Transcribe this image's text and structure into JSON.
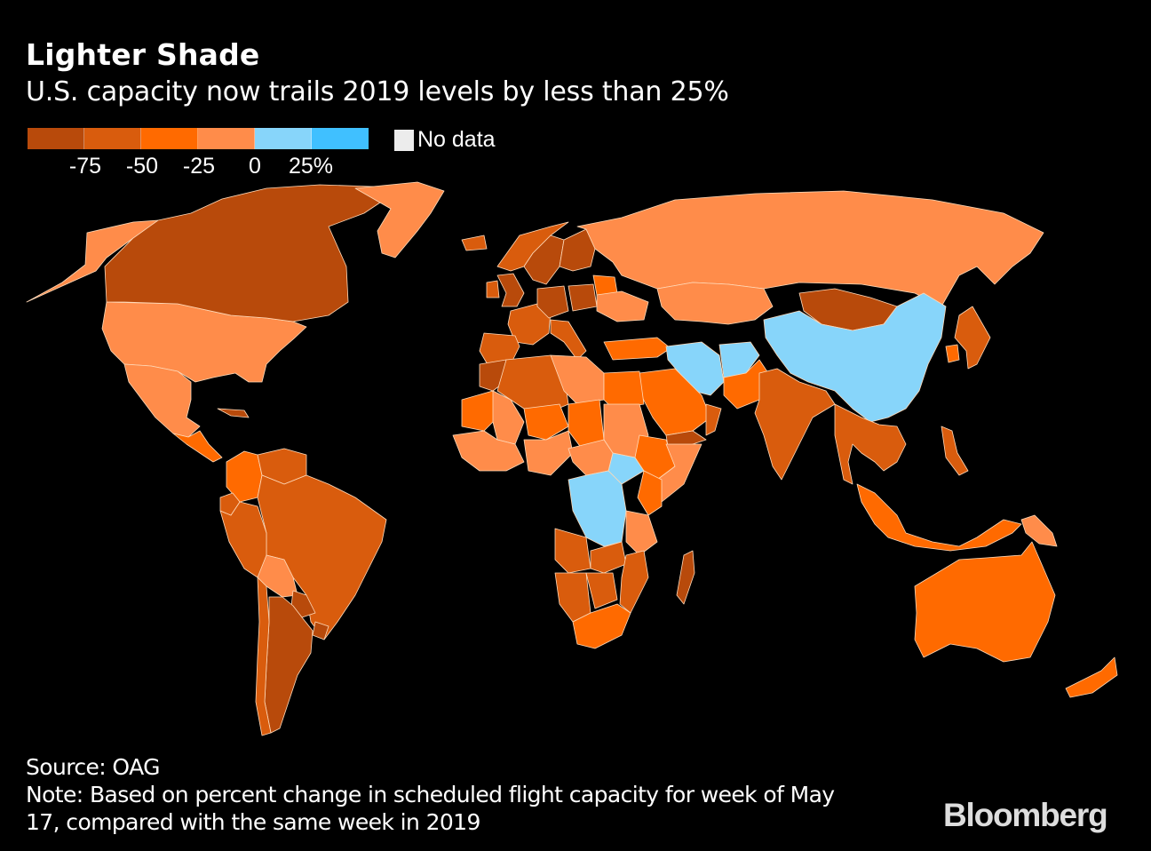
{
  "header": {
    "title": "Lighter Shade",
    "subtitle": "U.S. capacity now trails 2019 levels by less than 25%"
  },
  "legend": {
    "bins": [
      {
        "range": [
          -100,
          -75
        ],
        "color": "#b84a0b"
      },
      {
        "range": [
          -75,
          -50
        ],
        "color": "#d95c0d"
      },
      {
        "range": [
          -50,
          -25
        ],
        "color": "#ff6a00"
      },
      {
        "range": [
          -25,
          0
        ],
        "color": "#ff8c4a"
      },
      {
        "range": [
          0,
          25
        ],
        "color": "#87d5fa"
      },
      {
        "range": [
          25,
          50
        ],
        "color": "#40c0ff"
      }
    ],
    "tick_labels": [
      "-75",
      "-50",
      "-25",
      "0",
      "25%"
    ],
    "no_data_label": "No data",
    "no_data_color": "#ececec"
  },
  "chart_data": {
    "type": "choropleth",
    "title": "Lighter Shade",
    "subtitle": "U.S. capacity now trails 2019 levels by less than 25%",
    "metric": "Percent change in scheduled flight capacity, week of May 17 vs same week 2019",
    "legend_placement": "top-left",
    "bin_edges": [
      -100,
      -75,
      -50,
      -25,
      0,
      25,
      50
    ],
    "regions": [
      {
        "name": "United States",
        "bin": "-25 to 0"
      },
      {
        "name": "Alaska (U.S.)",
        "bin": "-25 to 0"
      },
      {
        "name": "Canada",
        "bin": "-100 to -75"
      },
      {
        "name": "Greenland",
        "bin": "-25 to 0"
      },
      {
        "name": "Mexico",
        "bin": "-25 to 0"
      },
      {
        "name": "Central America",
        "bin": "-50 to -25"
      },
      {
        "name": "Cuba",
        "bin": "-100 to -75"
      },
      {
        "name": "Colombia",
        "bin": "-50 to -25"
      },
      {
        "name": "Venezuela",
        "bin": "-75 to -50"
      },
      {
        "name": "Brazil",
        "bin": "-75 to -50"
      },
      {
        "name": "Peru",
        "bin": "-75 to -50"
      },
      {
        "name": "Ecuador",
        "bin": "-75 to -50"
      },
      {
        "name": "Bolivia",
        "bin": "-25 to 0"
      },
      {
        "name": "Paraguay",
        "bin": "-100 to -75"
      },
      {
        "name": "Argentina",
        "bin": "-100 to -75"
      },
      {
        "name": "Chile",
        "bin": "-75 to -50"
      },
      {
        "name": "Uruguay",
        "bin": "-100 to -75"
      },
      {
        "name": "Iceland",
        "bin": "-75 to -50"
      },
      {
        "name": "Norway",
        "bin": "-75 to -50"
      },
      {
        "name": "Sweden",
        "bin": "-100 to -75"
      },
      {
        "name": "Finland",
        "bin": "-100 to -75"
      },
      {
        "name": "United Kingdom",
        "bin": "-100 to -75"
      },
      {
        "name": "Ireland",
        "bin": "-75 to -50"
      },
      {
        "name": "France",
        "bin": "-75 to -50"
      },
      {
        "name": "Spain",
        "bin": "-75 to -50"
      },
      {
        "name": "Germany",
        "bin": "-100 to -75"
      },
      {
        "name": "Poland",
        "bin": "-100 to -75"
      },
      {
        "name": "Italy",
        "bin": "-75 to -50"
      },
      {
        "name": "Belarus",
        "bin": "-50 to -25"
      },
      {
        "name": "Ukraine",
        "bin": "-25 to 0"
      },
      {
        "name": "Turkey",
        "bin": "-50 to -25"
      },
      {
        "name": "Russia",
        "bin": "-25 to 0"
      },
      {
        "name": "Kazakhstan",
        "bin": "-25 to 0"
      },
      {
        "name": "Mongolia",
        "bin": "-100 to -75"
      },
      {
        "name": "China",
        "bin": "0 to 25"
      },
      {
        "name": "Iran",
        "bin": "0 to 25"
      },
      {
        "name": "Afghanistan",
        "bin": "0 to 25"
      },
      {
        "name": "Pakistan",
        "bin": "-50 to -25"
      },
      {
        "name": "India",
        "bin": "-75 to -50"
      },
      {
        "name": "Saudi Arabia",
        "bin": "-50 to -25"
      },
      {
        "name": "Yemen",
        "bin": "-100 to -75"
      },
      {
        "name": "Oman",
        "bin": "-75 to -50"
      },
      {
        "name": "Japan",
        "bin": "-75 to -50"
      },
      {
        "name": "South Korea",
        "bin": "-50 to -25"
      },
      {
        "name": "Southeast Asia mainland",
        "bin": "-75 to -50"
      },
      {
        "name": "Philippines",
        "bin": "-75 to -50"
      },
      {
        "name": "Indonesia",
        "bin": "-50 to -25"
      },
      {
        "name": "Papua New Guinea",
        "bin": "-25 to 0"
      },
      {
        "name": "Australia",
        "bin": "-50 to -25"
      },
      {
        "name": "New Zealand",
        "bin": "-50 to -25"
      },
      {
        "name": "Morocco",
        "bin": "-100 to -75"
      },
      {
        "name": "Algeria",
        "bin": "-75 to -50"
      },
      {
        "name": "Libya",
        "bin": "-25 to 0"
      },
      {
        "name": "Egypt",
        "bin": "-50 to -25"
      },
      {
        "name": "Mauritania",
        "bin": "-50 to -25"
      },
      {
        "name": "Mali",
        "bin": "-25 to 0"
      },
      {
        "name": "Niger",
        "bin": "-50 to -25"
      },
      {
        "name": "Chad",
        "bin": "-50 to -25"
      },
      {
        "name": "Sudan",
        "bin": "-25 to 0"
      },
      {
        "name": "South Sudan",
        "bin": "0 to 25"
      },
      {
        "name": "Ethiopia",
        "bin": "-50 to -25"
      },
      {
        "name": "Somalia",
        "bin": "-25 to 0"
      },
      {
        "name": "Nigeria",
        "bin": "-25 to 0"
      },
      {
        "name": "West Africa coast",
        "bin": "-25 to 0"
      },
      {
        "name": "Central African Republic",
        "bin": "-25 to 0"
      },
      {
        "name": "DR Congo",
        "bin": "0 to 25"
      },
      {
        "name": "Kenya",
        "bin": "-50 to -25"
      },
      {
        "name": "Tanzania",
        "bin": "-25 to 0"
      },
      {
        "name": "Angola",
        "bin": "-75 to -50"
      },
      {
        "name": "Zambia",
        "bin": "-75 to -50"
      },
      {
        "name": "Namibia",
        "bin": "-75 to -50"
      },
      {
        "name": "Botswana",
        "bin": "-75 to -50"
      },
      {
        "name": "Mozambique",
        "bin": "-75 to -50"
      },
      {
        "name": "South Africa",
        "bin": "-50 to -25"
      },
      {
        "name": "Madagascar",
        "bin": "-100 to -75"
      }
    ]
  },
  "footer": {
    "source": "Source: OAG",
    "note_line1": "Note: Based on percent change in scheduled flight capacity for week of May",
    "note_line2": "17, compared with the same week in 2019",
    "logo": "Bloomberg"
  }
}
